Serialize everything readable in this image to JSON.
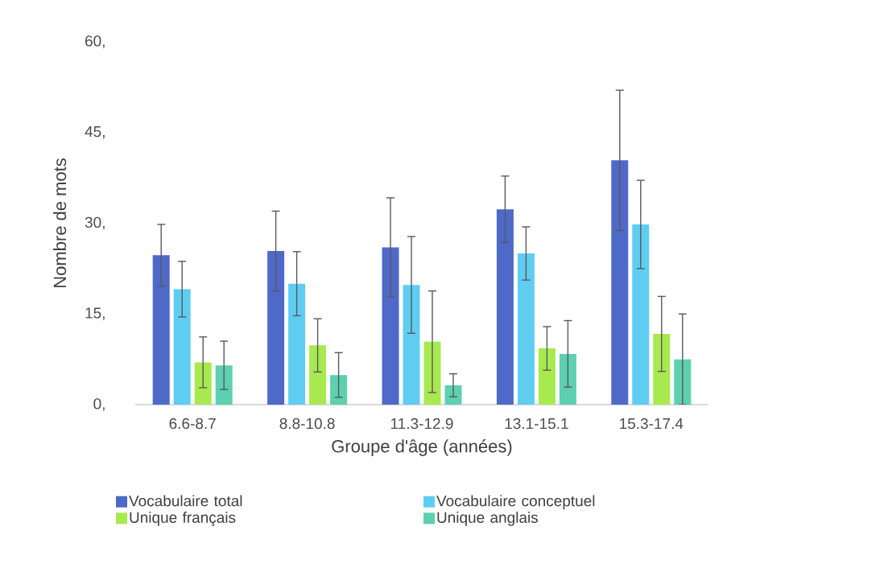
{
  "chart_data": {
    "type": "bar",
    "xlabel": "Groupe d'âge (années)",
    "ylabel": "Nombre de mots",
    "categories": [
      "6.6-8.7",
      "8.8-10.8",
      "11.3-12.9",
      "13.1-15.1",
      "15.3-17.4"
    ],
    "series": [
      {
        "name": "Vocabulaire total",
        "color": "#4f69c9",
        "values": [
          24.7,
          25.4,
          26.0,
          32.3,
          40.4
        ],
        "errors": [
          5.1,
          6.6,
          8.2,
          5.5,
          11.6
        ]
      },
      {
        "name": "Vocabulaire conceptuel",
        "color": "#5fcdf2",
        "values": [
          19.1,
          20.0,
          19.8,
          25.0,
          29.8
        ],
        "errors": [
          4.6,
          5.3,
          8.0,
          4.4,
          7.3
        ]
      },
      {
        "name": "Unique français",
        "color": "#a8e94f",
        "values": [
          7.0,
          9.8,
          10.4,
          9.3,
          11.7
        ],
        "errors": [
          4.2,
          4.4,
          8.4,
          3.6,
          6.2
        ]
      },
      {
        "name": "Unique anglais",
        "color": "#5dd0b0",
        "values": [
          6.5,
          4.9,
          3.2,
          8.4,
          7.5
        ],
        "errors": [
          4.0,
          3.7,
          1.9,
          5.5,
          7.5
        ]
      }
    ],
    "ylim": [
      0,
      60
    ],
    "yticks": [
      {
        "value": 0,
        "label": "0,"
      },
      {
        "value": 15,
        "label": "15,"
      },
      {
        "value": 30,
        "label": "30,"
      },
      {
        "value": 45,
        "label": "45,"
      },
      {
        "value": 60,
        "label": "60,"
      }
    ],
    "grid": false,
    "legend": "bottom"
  }
}
